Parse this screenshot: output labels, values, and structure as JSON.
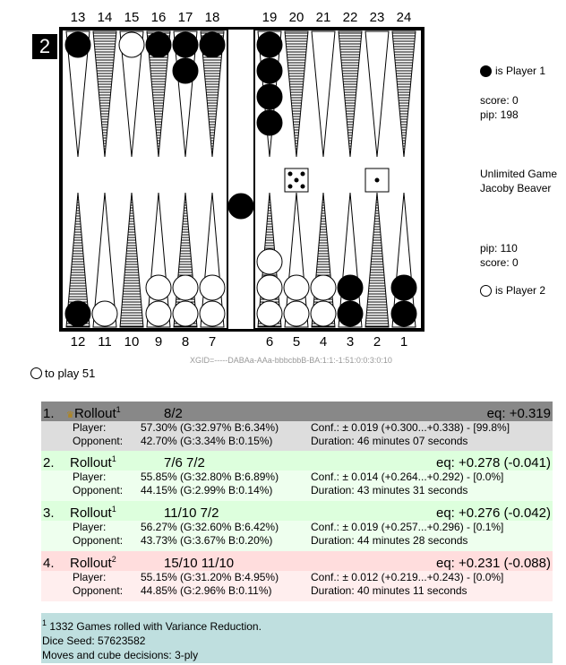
{
  "board": {
    "top_points": [
      "13",
      "14",
      "15",
      "16",
      "17",
      "18",
      "19",
      "20",
      "21",
      "22",
      "23",
      "24"
    ],
    "bottom_points": [
      "12",
      "11",
      "10",
      "9",
      "8",
      "7",
      "6",
      "5",
      "4",
      "3",
      "2",
      "1"
    ],
    "cube_value": "2",
    "dice": [
      5,
      1
    ],
    "black_checkers": {
      "13": 1,
      "16": 1,
      "17": 2,
      "18": 1,
      "19": 4,
      "12": 1,
      "3": 2,
      "1": 2,
      "bar": 1
    },
    "white_checkers": {
      "15": 1,
      "11": 1,
      "9": 2,
      "8": 2,
      "7": 2,
      "6": 3,
      "5": 2,
      "4": 2
    },
    "xgid": "XGID=-----DABAa-AAa-bbbcbbB-BA:1:1:-1:51:0:0:3:0:10"
  },
  "player1": {
    "label": "is Player 1",
    "score": "score: 0",
    "pip": "pip: 198"
  },
  "match_info": {
    "line1": "Unlimited Game",
    "line2": "Jacoby Beaver"
  },
  "player2": {
    "pip": "pip: 110",
    "score": "score: 0",
    "label": "is Player 2"
  },
  "to_play": "to play 51",
  "moves": [
    {
      "num": "1.",
      "tool": "Rollout",
      "sup": "1",
      "move": "8/2",
      "eq": "eq: +0.319",
      "player_label": "Player:",
      "player": "57.30% (G:32.97% B:6.34%)",
      "conf": "Conf.: ± 0.019 (+0.300...+0.338) - [99.8%]",
      "opp_label": "Opponent:",
      "opp": "42.70% (G:3.34% B:0.15%)",
      "duration": "Duration: 46 minutes 07 seconds",
      "head_bg": "#888888",
      "body_bg": "#dddddd",
      "trophy": true
    },
    {
      "num": "2.",
      "tool": "Rollout",
      "sup": "1",
      "move": "7/6 7/2",
      "eq": "eq: +0.278 (-0.041)",
      "player_label": "Player:",
      "player": "55.85% (G:32.80% B:6.89%)",
      "conf": "Conf.: ± 0.014 (+0.264...+0.292) - [0.0%]",
      "opp_label": "Opponent:",
      "opp": "44.15% (G:2.99% B:0.14%)",
      "duration": "Duration: 43 minutes 31 seconds",
      "head_bg": "#ddffdd",
      "body_bg": "#eeffee",
      "trophy": false
    },
    {
      "num": "3.",
      "tool": "Rollout",
      "sup": "1",
      "move": "11/10 7/2",
      "eq": "eq: +0.276 (-0.042)",
      "player_label": "Player:",
      "player": "56.27% (G:32.60% B:6.42%)",
      "conf": "Conf.: ± 0.019 (+0.257...+0.296) - [0.1%]",
      "opp_label": "Opponent:",
      "opp": "43.73% (G:3.67% B:0.20%)",
      "duration": "Duration: 44 minutes 28 seconds",
      "head_bg": "#ddffdd",
      "body_bg": "#eeffee",
      "trophy": false
    },
    {
      "num": "4.",
      "tool": "Rollout",
      "sup": "2",
      "move": "15/10 11/10",
      "eq": "eq: +0.231 (-0.088)",
      "player_label": "Player:",
      "player": "55.15% (G:31.20% B:4.95%)",
      "conf": "Conf.: ± 0.012 (+0.219...+0.243) - [0.0%]",
      "opp_label": "Opponent:",
      "opp": "44.85% (G:2.96% B:0.11%)",
      "duration": "Duration: 40 minutes 11 seconds",
      "head_bg": "#ffdddd",
      "body_bg": "#ffeeee",
      "trophy": false
    }
  ],
  "footnote": {
    "sup": "1",
    "line1": " 1332 Games rolled with Variance Reduction.",
    "line2": "Dice Seed: 57623582",
    "line3": "Moves and cube decisions: 3-ply"
  }
}
